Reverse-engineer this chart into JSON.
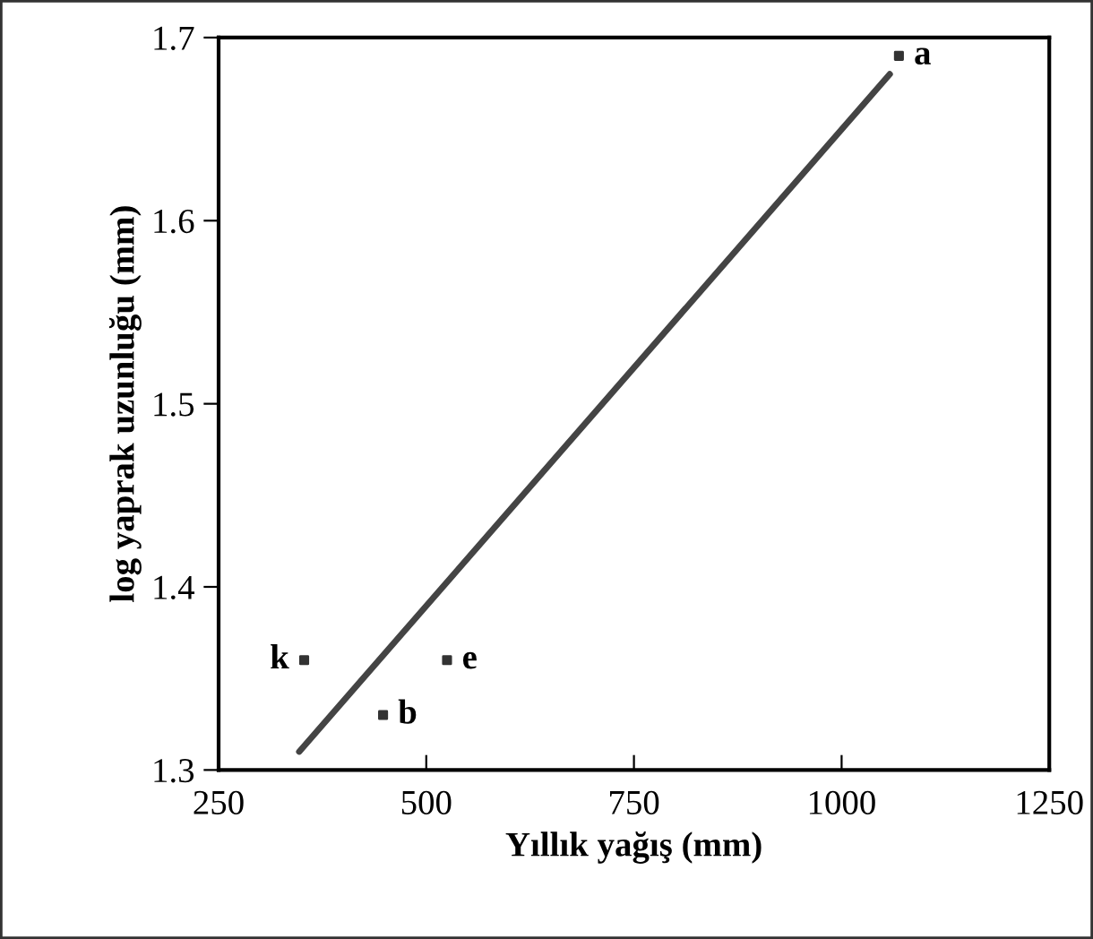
{
  "chart_data": {
    "type": "scatter",
    "xlabel": "Yıllık yağış (mm)",
    "ylabel": "log yaprak uzunluğu (mm)",
    "xlim": [
      250,
      1250
    ],
    "xticks": [
      250,
      500,
      750,
      1000,
      1250
    ],
    "ylim": [
      1.3,
      1.7
    ],
    "yticks": [
      1.3,
      1.4,
      1.5,
      1.6,
      1.7
    ],
    "grid": false,
    "legend": false,
    "series": [
      {
        "marker": "square",
        "color": "#333333",
        "x": [
          1069,
          353,
          525,
          448
        ],
        "values": [
          1.69,
          1.36,
          1.36,
          1.33
        ]
      },
      {
        "type": "line",
        "color": "#444444",
        "x": [
          347,
          1058
        ],
        "values": [
          1.31,
          1.68
        ],
        "line_style": "solid",
        "marker": "none"
      }
    ],
    "annotations": [
      {
        "text": "a",
        "x": 1069,
        "y": 1.69
      },
      {
        "text": "k",
        "x": 353,
        "y": 1.36
      },
      {
        "text": "e",
        "x": 525,
        "y": 1.36
      },
      {
        "text": "b",
        "x": 448,
        "y": 1.33
      }
    ]
  }
}
